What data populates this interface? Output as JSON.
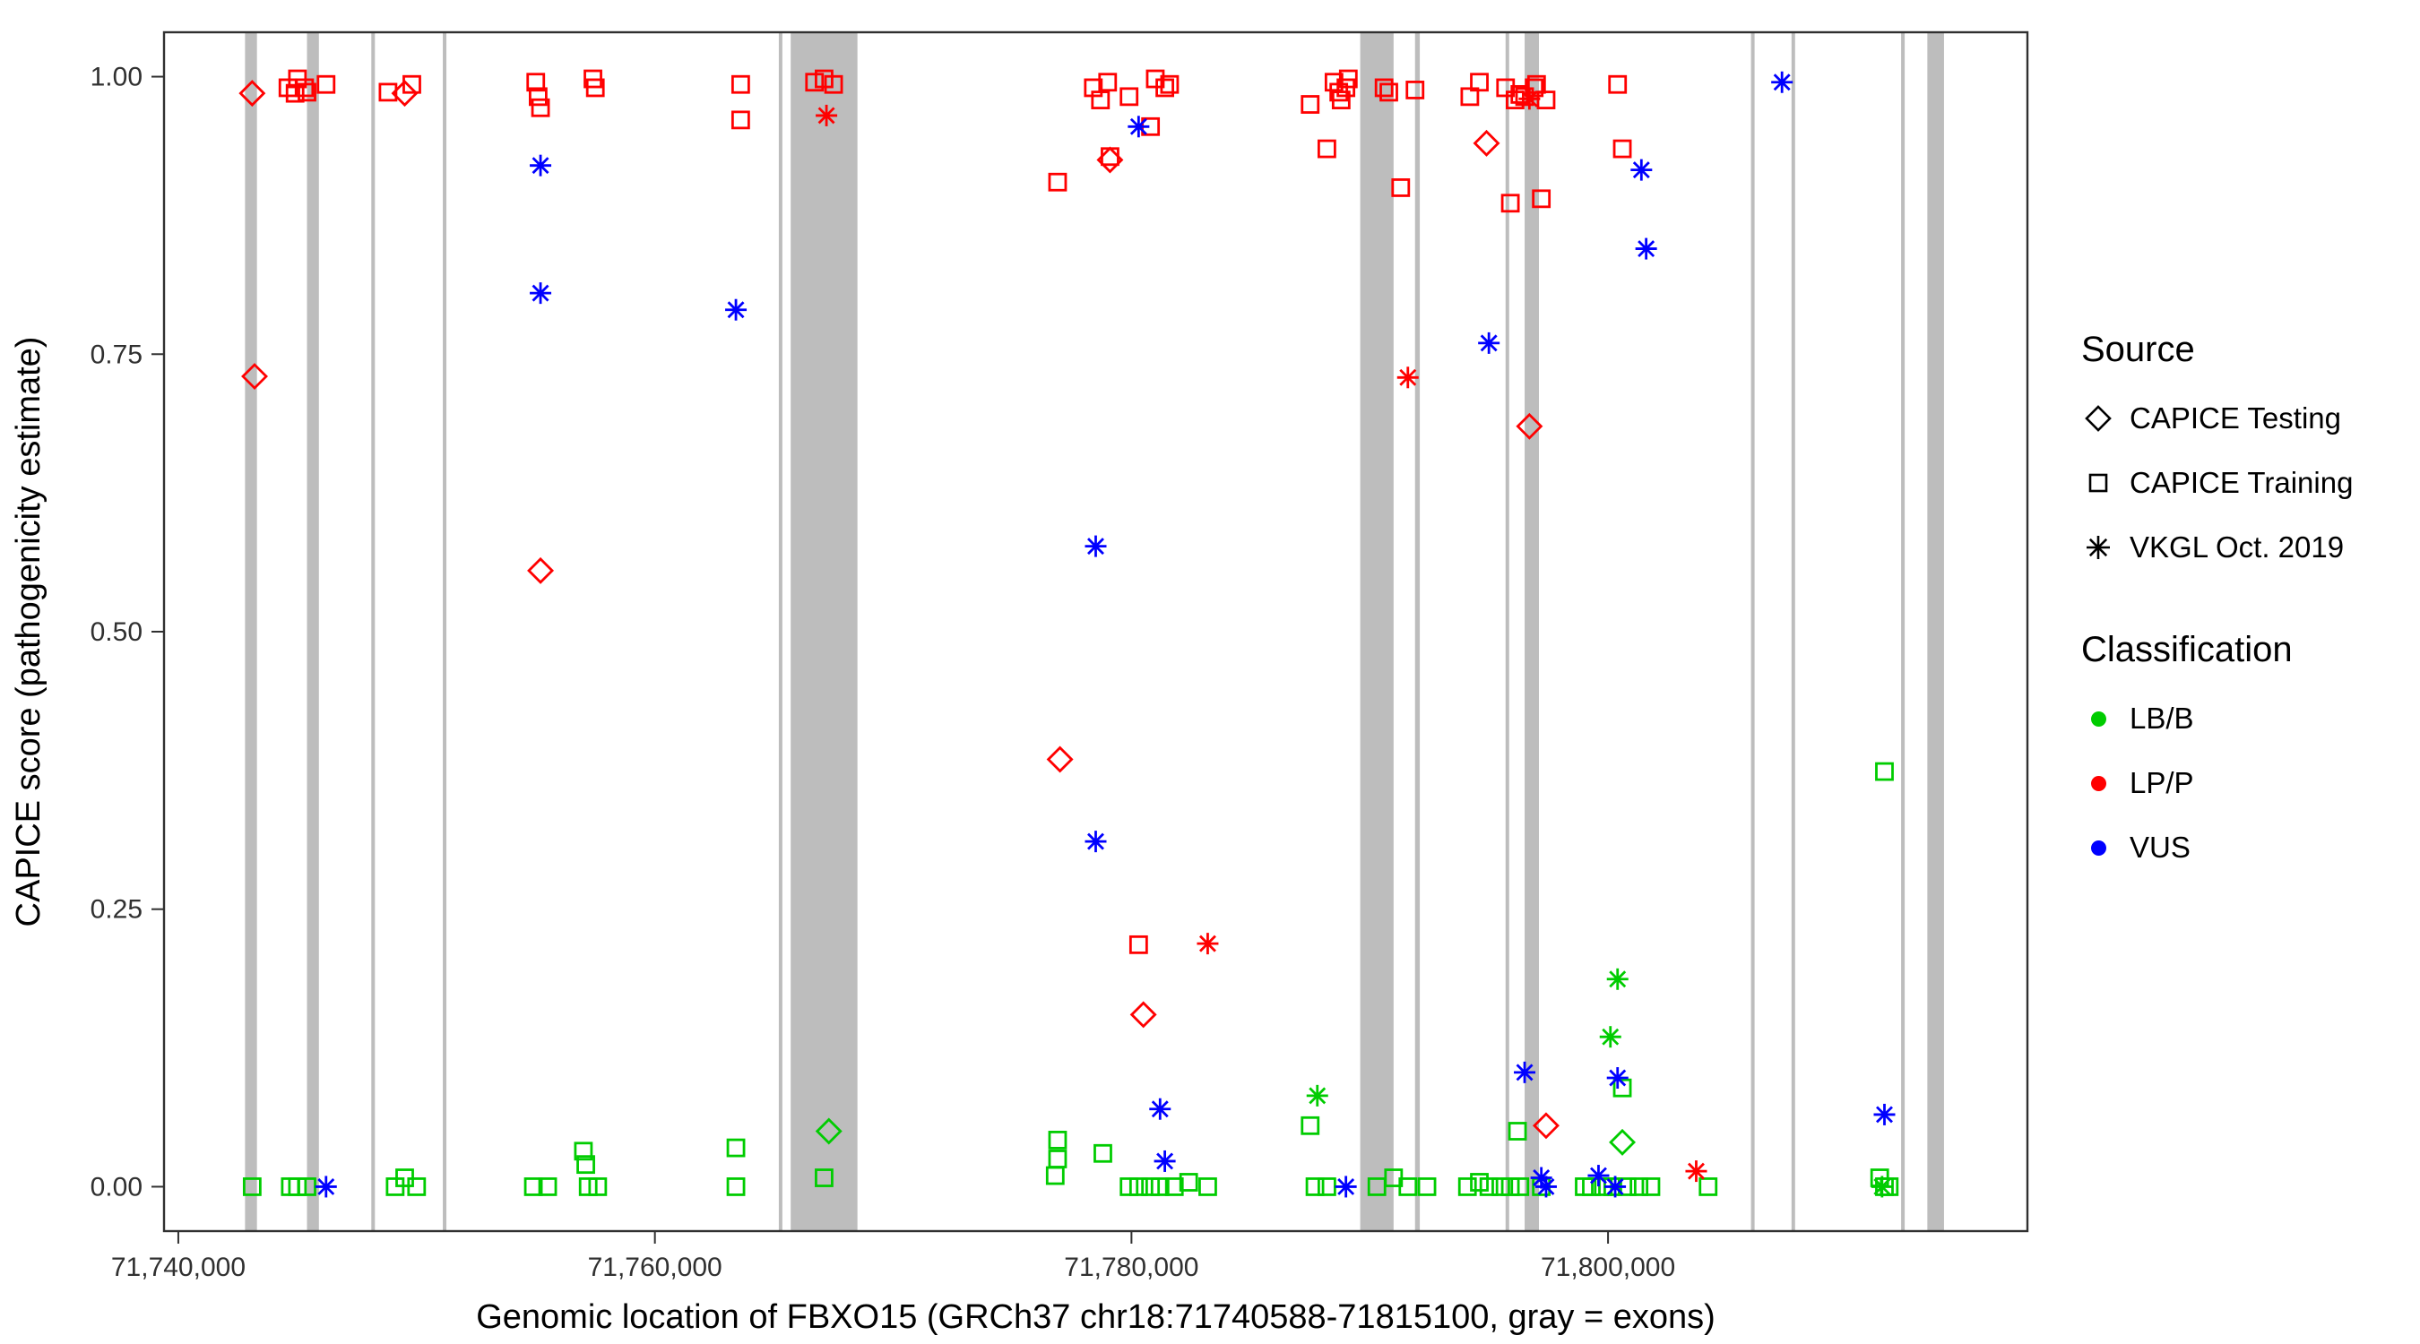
{
  "figure": {
    "xlabel": "Genomic location of FBXO15 (GRCh37 chr18:71740588-71815100, gray = exons)",
    "ylabel": "CAPICE score (pathogenicity estimate)"
  },
  "legend": {
    "source": {
      "title": "Source",
      "items": [
        {
          "label": "CAPICE Testing",
          "symbol": "diamond"
        },
        {
          "label": "CAPICE Training",
          "symbol": "square"
        },
        {
          "label": "VKGL Oct. 2019",
          "symbol": "asterisk"
        }
      ]
    },
    "classification": {
      "title": "Classification",
      "items": [
        {
          "label": "LB/B",
          "color": "#00cc00"
        },
        {
          "label": "LP/P",
          "color": "#ff0000"
        },
        {
          "label": "VUS",
          "color": "#0000ff"
        }
      ]
    }
  },
  "chart_data": {
    "type": "scatter",
    "title": "",
    "xlabel": "Genomic location of FBXO15 (GRCh37 chr18:71740588-71815100, gray = exons)",
    "ylabel": "CAPICE score (pathogenicity estimate)",
    "xlim": [
      71739400,
      71817600
    ],
    "ylim": [
      -0.04,
      1.04
    ],
    "xticks": [
      {
        "value": 71740000,
        "label": "71,740,000"
      },
      {
        "value": 71760000,
        "label": "71,760,000"
      },
      {
        "value": 71780000,
        "label": "71,780,000"
      },
      {
        "value": 71800000,
        "label": "71,800,000"
      }
    ],
    "yticks": [
      {
        "value": 0.0,
        "label": "0.00"
      },
      {
        "value": 0.25,
        "label": "0.25"
      },
      {
        "value": 0.5,
        "label": "0.50"
      },
      {
        "value": 0.75,
        "label": "0.75"
      },
      {
        "value": 1.0,
        "label": "1.00"
      }
    ],
    "exon_color": "#bdbdbd",
    "exons": [
      [
        71742800,
        71743300
      ],
      [
        71745400,
        71745900
      ],
      [
        71748100,
        71748250
      ],
      [
        71751100,
        71751250
      ],
      [
        71765200,
        71765350
      ],
      [
        71765700,
        71768500
      ],
      [
        71789600,
        71791000
      ],
      [
        71791900,
        71792100
      ],
      [
        71795700,
        71795850
      ],
      [
        71796500,
        71797100
      ],
      [
        71806000,
        71806150
      ],
      [
        71807700,
        71807850
      ],
      [
        71812300,
        71812450
      ],
      [
        71813400,
        71814100
      ]
    ],
    "colors": {
      "LB/B": "#00cc00",
      "LP/P": "#ff0000",
      "VUS": "#0000ff"
    },
    "symbols": {
      "CAPICE Testing": "diamond",
      "CAPICE Training": "square",
      "VKGL Oct. 2019": "asterisk"
    },
    "series": [
      {
        "source": "CAPICE Testing",
        "classification": "LP/P",
        "points": [
          [
            71743100,
            0.985
          ],
          [
            71743200,
            0.73
          ],
          [
            71749500,
            0.985
          ],
          [
            71755200,
            0.555
          ],
          [
            71777000,
            0.385
          ],
          [
            71779100,
            0.925
          ],
          [
            71780500,
            0.155
          ],
          [
            71794900,
            0.94
          ],
          [
            71796700,
            0.685
          ],
          [
            71797400,
            0.055
          ]
        ]
      },
      {
        "source": "CAPICE Testing",
        "classification": "LB/B",
        "points": [
          [
            71767300,
            0.05
          ],
          [
            71800600,
            0.04
          ]
        ]
      },
      {
        "source": "CAPICE Training",
        "classification": "LP/P",
        "points": [
          [
            71744600,
            0.99
          ],
          [
            71744900,
            0.985
          ],
          [
            71745000,
            0.998
          ],
          [
            71745300,
            0.99
          ],
          [
            71745400,
            0.986
          ],
          [
            71746200,
            0.993
          ],
          [
            71748800,
            0.986
          ],
          [
            71749800,
            0.993
          ],
          [
            71755000,
            0.995
          ],
          [
            71755100,
            0.982
          ],
          [
            71755200,
            0.972
          ],
          [
            71757400,
            0.998
          ],
          [
            71757500,
            0.99
          ],
          [
            71763600,
            0.993
          ],
          [
            71763600,
            0.961
          ],
          [
            71766700,
            0.995
          ],
          [
            71767100,
            0.998
          ],
          [
            71767500,
            0.993
          ],
          [
            71776900,
            0.905
          ],
          [
            71778400,
            0.99
          ],
          [
            71778700,
            0.979
          ],
          [
            71779000,
            0.995
          ],
          [
            71779100,
            0.928
          ],
          [
            71779900,
            0.982
          ],
          [
            71780800,
            0.955
          ],
          [
            71781000,
            0.998
          ],
          [
            71781400,
            0.99
          ],
          [
            71781600,
            0.993
          ],
          [
            71780300,
            0.218
          ],
          [
            71787500,
            0.975
          ],
          [
            71788200,
            0.935
          ],
          [
            71788500,
            0.995
          ],
          [
            71788700,
            0.986
          ],
          [
            71788800,
            0.979
          ],
          [
            71789000,
            0.99
          ],
          [
            71789100,
            0.998
          ],
          [
            71790600,
            0.99
          ],
          [
            71790800,
            0.986
          ],
          [
            71791300,
            0.9
          ],
          [
            71791900,
            0.988
          ],
          [
            71794200,
            0.982
          ],
          [
            71794600,
            0.995
          ],
          [
            71795700,
            0.99
          ],
          [
            71795900,
            0.886
          ],
          [
            71796100,
            0.979
          ],
          [
            71796300,
            0.984
          ],
          [
            71796500,
            0.982
          ],
          [
            71796900,
            0.99
          ],
          [
            71797000,
            0.993
          ],
          [
            71797200,
            0.89
          ],
          [
            71797400,
            0.979
          ],
          [
            71800400,
            0.993
          ],
          [
            71800600,
            0.935
          ]
        ]
      },
      {
        "source": "CAPICE Training",
        "classification": "LB/B",
        "points": [
          [
            71743100,
            0
          ],
          [
            71744700,
            0
          ],
          [
            71745000,
            0
          ],
          [
            71745400,
            0
          ],
          [
            71749100,
            0
          ],
          [
            71749500,
            0.008
          ],
          [
            71750000,
            0
          ],
          [
            71754900,
            0
          ],
          [
            71755500,
            0
          ],
          [
            71757000,
            0.032
          ],
          [
            71757100,
            0.02
          ],
          [
            71757200,
            0
          ],
          [
            71757600,
            0
          ],
          [
            71763400,
            0.035
          ],
          [
            71763400,
            0
          ],
          [
            71767100,
            0.008
          ],
          [
            71776900,
            0.042
          ],
          [
            71776900,
            0.025
          ],
          [
            71776800,
            0.01
          ],
          [
            71778800,
            0.03
          ],
          [
            71779900,
            0
          ],
          [
            71780300,
            0
          ],
          [
            71780800,
            0
          ],
          [
            71781200,
            0
          ],
          [
            71781800,
            0
          ],
          [
            71782400,
            0.004
          ],
          [
            71783200,
            0
          ],
          [
            71787500,
            0.055
          ],
          [
            71787700,
            0
          ],
          [
            71788200,
            0
          ],
          [
            71790300,
            0
          ],
          [
            71791000,
            0.008
          ],
          [
            71791600,
            0
          ],
          [
            71792400,
            0
          ],
          [
            71794100,
            0
          ],
          [
            71794600,
            0.004
          ],
          [
            71795000,
            0
          ],
          [
            71795500,
            0
          ],
          [
            71795900,
            0
          ],
          [
            71796200,
            0.05
          ],
          [
            71796300,
            0
          ],
          [
            71797200,
            0
          ],
          [
            71799000,
            0
          ],
          [
            71799300,
            0
          ],
          [
            71799800,
            0
          ],
          [
            71800200,
            0
          ],
          [
            71800600,
            0.089
          ],
          [
            71800800,
            0
          ],
          [
            71801300,
            0
          ],
          [
            71801800,
            0
          ],
          [
            71804200,
            0
          ],
          [
            71811600,
            0.374
          ],
          [
            71811400,
            0.008
          ],
          [
            71811600,
            0
          ],
          [
            71811800,
            0
          ]
        ]
      },
      {
        "source": "VKGL Oct. 2019",
        "classification": "LP/P",
        "points": [
          [
            71767200,
            0.965
          ],
          [
            71783200,
            0.219
          ],
          [
            71791600,
            0.729
          ],
          [
            71796700,
            0.98
          ],
          [
            71803700,
            0.014
          ]
        ]
      },
      {
        "source": "VKGL Oct. 2019",
        "classification": "LB/B",
        "points": [
          [
            71787800,
            0.082
          ],
          [
            71800100,
            0.135
          ],
          [
            71800400,
            0.187
          ],
          [
            71811500,
            0
          ]
        ]
      },
      {
        "source": "VKGL Oct. 2019",
        "classification": "VUS",
        "points": [
          [
            71746200,
            0
          ],
          [
            71755200,
            0.92
          ],
          [
            71755200,
            0.805
          ],
          [
            71763400,
            0.79
          ],
          [
            71778500,
            0.577
          ],
          [
            71778500,
            0.311
          ],
          [
            71780300,
            0.955
          ],
          [
            71781200,
            0.07
          ],
          [
            71781400,
            0.023
          ],
          [
            71789000,
            0
          ],
          [
            71795000,
            0.76
          ],
          [
            71796500,
            0.103
          ],
          [
            71797200,
            0.008
          ],
          [
            71797400,
            0
          ],
          [
            71799600,
            0.01
          ],
          [
            71800300,
            0
          ],
          [
            71800400,
            0.098
          ],
          [
            71801400,
            0.916
          ],
          [
            71801600,
            0.845
          ],
          [
            71807300,
            0.995
          ],
          [
            71811600,
            0.065
          ]
        ]
      }
    ]
  }
}
